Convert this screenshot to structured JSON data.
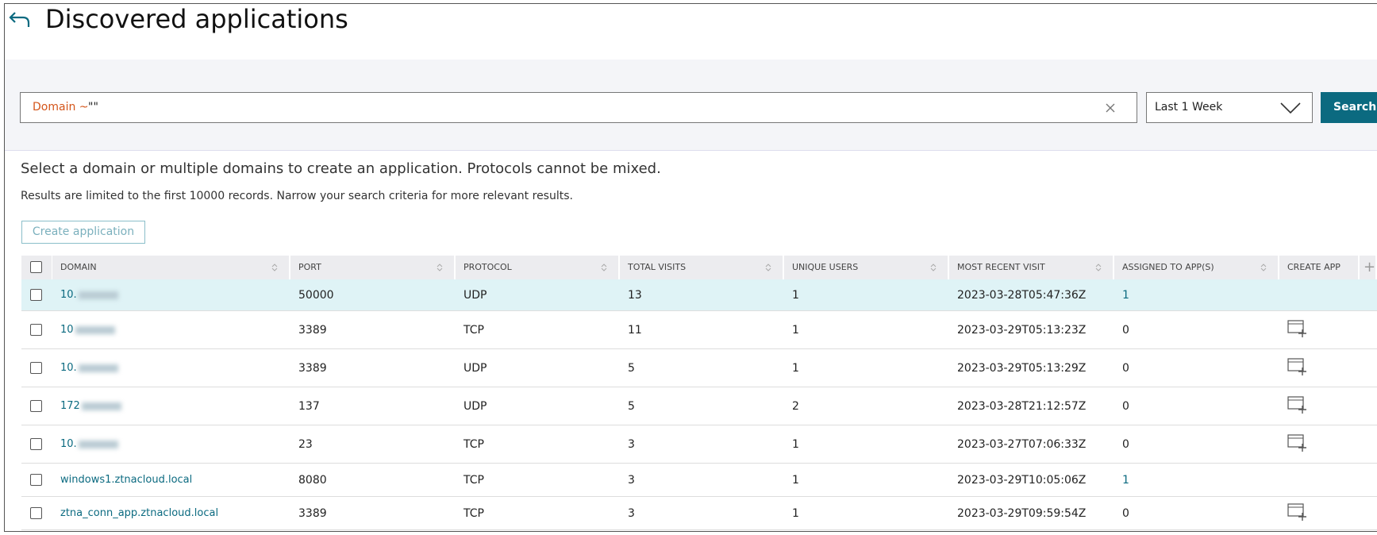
{
  "header": {
    "title": "Discovered applications"
  },
  "search": {
    "query_field": "Domain ~",
    "query_value": "\"\"",
    "range": "Last 1 Week",
    "button": "Search"
  },
  "instructions": "Select a domain or multiple domains to create an application. Protocols cannot be mixed.",
  "notice": "Results are limited to the first 10000 records. Narrow your search criteria for more relevant results.",
  "create_button": "Create application",
  "table": {
    "columns": [
      "DOMAIN",
      "PORT",
      "PROTOCOL",
      "TOTAL VISITS",
      "UNIQUE USERS",
      "MOST RECENT VISIT",
      "ASSIGNED TO APP(S)",
      "CREATE APP"
    ],
    "rows": [
      [
        "10.",
        "50000",
        "UDP",
        "13",
        "1",
        "2023-03-28T05:47:36Z",
        "1"
      ],
      [
        "10",
        "3389",
        "TCP",
        "11",
        "1",
        "2023-03-29T05:13:23Z",
        "0"
      ],
      [
        "10.",
        "3389",
        "UDP",
        "5",
        "1",
        "2023-03-29T05:13:29Z",
        "0"
      ],
      [
        "172",
        "137",
        "UDP",
        "5",
        "2",
        "2023-03-28T21:12:57Z",
        "0"
      ],
      [
        "10.",
        "23",
        "TCP",
        "3",
        "1",
        "2023-03-27T07:06:33Z",
        "0"
      ],
      [
        "windows1.ztnacloud.local",
        "8080",
        "TCP",
        "3",
        "1",
        "2023-03-29T10:05:06Z",
        "1"
      ],
      [
        "ztna_conn_app.ztnacloud.local",
        "3389",
        "TCP",
        "3",
        "1",
        "2023-03-29T09:59:54Z",
        "0"
      ]
    ]
  }
}
